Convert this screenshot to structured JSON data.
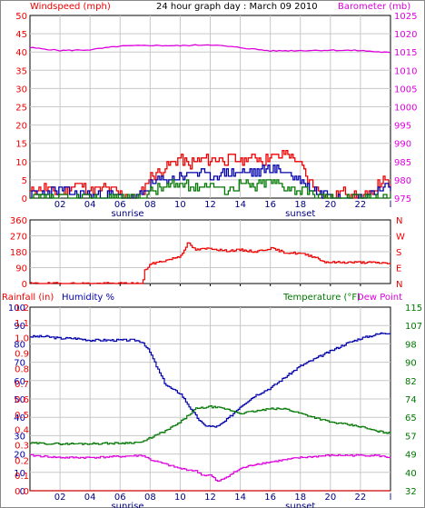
{
  "title": "24 hour graph day : March 09 2010",
  "colors": {
    "red": "#ee0000",
    "magenta": "#dd00dd",
    "blue": "#0000aa",
    "green": "#007700",
    "dark_red": "#cc0000",
    "grid": "#c8c8c8",
    "frame": "#000000"
  },
  "chart_data": [
    {
      "type": "line",
      "panel": "wind-barometer",
      "title": "24 hour graph day : March 09 2010",
      "ylabel_left": "Windspeed (mph)",
      "ylabel_right": "Barometer (mb)",
      "x_ticks": [
        "02",
        "04",
        "06",
        "08",
        "10",
        "12",
        "14",
        "16",
        "18",
        "20",
        "22",
        "l"
      ],
      "x_markers": [
        "sunrise",
        "sunset"
      ],
      "y_left_ticks": [
        "0",
        "5",
        "10",
        "15",
        "20",
        "25",
        "30",
        "35",
        "40",
        "45",
        "50"
      ],
      "y_left_range": [
        0,
        50
      ],
      "y_right_ticks": [
        "975",
        "980",
        "985",
        "990",
        "995",
        "1000",
        "1005",
        "1010",
        "1015",
        "1020",
        "1025"
      ],
      "y_right_range": [
        975,
        1025
      ],
      "grid": true,
      "series": [
        {
          "name": "Windspeed (mph)",
          "axis": "left",
          "color": "#ee0000",
          "x": [
            0,
            1,
            2,
            3,
            4,
            5,
            6,
            7,
            7.5,
            8,
            8.5,
            9,
            9.5,
            10,
            10.5,
            11,
            11.5,
            12,
            12.5,
            13,
            13.5,
            14,
            14.5,
            15,
            15.5,
            16,
            16.5,
            17,
            17.5,
            18,
            18.5,
            19,
            19.5,
            20,
            20.5,
            21,
            21.5,
            22,
            22.5,
            23,
            23.5,
            24
          ],
          "values": [
            2,
            3,
            1,
            4,
            2,
            3,
            1,
            0,
            2,
            6,
            7,
            8,
            10,
            11,
            9,
            10,
            11,
            10,
            11,
            10,
            11,
            10,
            11,
            11,
            10,
            12,
            11,
            13,
            11,
            9,
            5,
            3,
            1,
            0,
            1,
            2,
            1,
            0,
            1,
            3,
            5,
            3
          ]
        },
        {
          "name": "Wind gust",
          "axis": "left",
          "color": "#0000aa",
          "x": [
            0,
            2,
            4,
            6,
            7,
            7.5,
            8,
            9,
            10,
            11,
            12,
            13,
            14,
            15,
            16,
            17,
            18,
            18.5,
            19,
            20,
            21,
            22,
            23,
            23.5,
            24
          ],
          "values": [
            1,
            2,
            1,
            0.5,
            0,
            1,
            4,
            5,
            6,
            7,
            6,
            7,
            7,
            7,
            8,
            7,
            5,
            3,
            2,
            1,
            1,
            0,
            2,
            3,
            2
          ]
        },
        {
          "name": "Wind average",
          "axis": "left",
          "color": "#007700",
          "x": [
            0,
            6,
            7.5,
            8,
            9,
            10,
            11,
            12,
            13,
            14,
            15,
            16,
            17,
            18,
            19,
            20,
            22,
            23,
            24
          ],
          "values": [
            0,
            0,
            0,
            2,
            3,
            4,
            3,
            4,
            2,
            4,
            3,
            5,
            3,
            2,
            1,
            0,
            0,
            1,
            0
          ]
        },
        {
          "name": "Barometer (mb)",
          "axis": "right",
          "color": "#dd00dd",
          "x": [
            0,
            2,
            4,
            6,
            8,
            10,
            12,
            14,
            16,
            18,
            20,
            22,
            24
          ],
          "values": [
            1016.2,
            1015.4,
            1015.6,
            1016.6,
            1016.8,
            1016.7,
            1017.0,
            1016.2,
            1015.3,
            1015.4,
            1015.5,
            1015.4,
            1014.8
          ]
        }
      ]
    },
    {
      "type": "line",
      "panel": "wind-direction",
      "x_ticks": [],
      "y_left_ticks": [
        "0",
        "90",
        "180",
        "270",
        "360"
      ],
      "y_left_range": [
        0,
        360
      ],
      "y_right_ticks": [
        "N",
        "E",
        "S",
        "W",
        "N"
      ],
      "grid": true,
      "series": [
        {
          "name": "Wind direction",
          "color": "#ee0000",
          "x": [
            0,
            7.5,
            7.6,
            8,
            9,
            10,
            10.5,
            11,
            12,
            13,
            14,
            15,
            16,
            17,
            18,
            19,
            19.5,
            20,
            22,
            24
          ],
          "values": [
            0,
            0,
            70,
            110,
            130,
            155,
            230,
            190,
            200,
            185,
            190,
            180,
            200,
            175,
            170,
            150,
            125,
            120,
            120,
            115
          ]
        }
      ]
    },
    {
      "type": "line",
      "panel": "humidity-temperature",
      "ylabel_left_1": "Rainfall (in)",
      "ylabel_left_2": "Humidity %",
      "ylabel_right_1": "Temperature (°F)",
      "ylabel_right_2": "Dew Point",
      "x_ticks": [
        "02",
        "04",
        "06",
        "08",
        "10",
        "12",
        "14",
        "16",
        "18",
        "20",
        "22",
        "l"
      ],
      "x_markers": [
        "sunrise",
        "sunset"
      ],
      "y_rain_ticks": [
        "0.0",
        "0.1",
        "0.2",
        "0.3",
        "0.4",
        "0.5",
        "0.6",
        "0.7",
        "0.8",
        "0.9",
        "1.0",
        "1.1",
        "1.2"
      ],
      "y_humidity_ticks": [
        "0",
        "10",
        "20",
        "30",
        "40",
        "50",
        "60",
        "70",
        "80",
        "90",
        "100"
      ],
      "y_left_range": [
        0,
        100
      ],
      "y_right_ticks": [
        "32",
        "40",
        "49",
        "57",
        "65",
        "74",
        "82",
        "90",
        "98",
        "107",
        "115"
      ],
      "y_right_range": [
        32,
        115
      ],
      "grid": true,
      "series": [
        {
          "name": "Humidity %",
          "axis": "left",
          "color": "#0000aa",
          "x": [
            0,
            1,
            2,
            3,
            4,
            5,
            6,
            7,
            7.5,
            8,
            8.5,
            9,
            9.5,
            10,
            10.5,
            11,
            11.5,
            12,
            12.5,
            13,
            13.5,
            14,
            15,
            16,
            17,
            18,
            19,
            20,
            21,
            22,
            23,
            23.5,
            24
          ],
          "values": [
            84,
            84,
            83,
            83,
            82,
            82,
            82,
            82,
            81,
            75,
            66,
            58,
            55,
            53,
            47,
            41,
            36,
            35,
            35,
            38,
            42,
            46,
            52,
            56,
            62,
            68,
            72,
            76,
            80,
            83,
            85,
            86,
            86
          ]
        },
        {
          "name": "Temperature (°F)",
          "axis": "right",
          "color": "#007700",
          "x": [
            0,
            2,
            4,
            6,
            7.5,
            8,
            9,
            10,
            11,
            12,
            13,
            14,
            15,
            16,
            17,
            18,
            19,
            20,
            21,
            22,
            23,
            24
          ],
          "values": [
            53.5,
            53.2,
            53.3,
            53.5,
            54,
            56,
            59,
            63,
            69,
            70,
            69,
            67,
            68,
            69,
            69,
            67,
            65,
            63,
            62,
            61,
            59,
            58
          ]
        },
        {
          "name": "Dew Point",
          "axis": "right",
          "color": "#dd00dd",
          "x": [
            0,
            2,
            4,
            6,
            7.5,
            8,
            9,
            10,
            11,
            11.5,
            12,
            12.5,
            13,
            14,
            15,
            16,
            17,
            18,
            19,
            20,
            21,
            22,
            23,
            24
          ],
          "values": [
            48,
            47,
            47,
            47.5,
            48,
            46,
            44,
            42,
            41,
            39,
            39,
            36,
            38,
            42,
            44,
            45,
            46,
            47,
            47.5,
            48,
            48,
            48,
            48,
            47
          ]
        },
        {
          "name": "Rainfall (in)",
          "axis": "rain",
          "color": "#cc0000",
          "x": [
            0,
            24
          ],
          "values": [
            0,
            0
          ]
        }
      ]
    }
  ]
}
